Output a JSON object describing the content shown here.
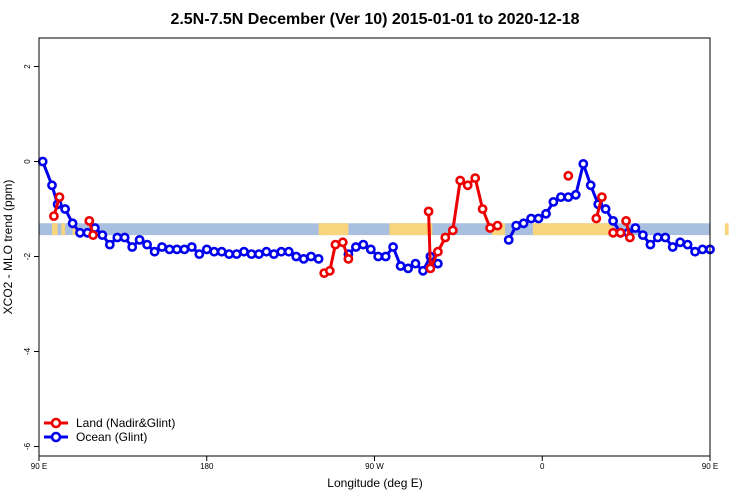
{
  "chart_data": {
    "type": "line",
    "title": "2.5N-7.5N December (Ver 10)   2015-01-01 to 2020-12-18",
    "xlabel": "Longitude (deg E)",
    "ylabel": "XCO2 - MLO trend (ppm)",
    "xlim": [
      90,
      450
    ],
    "ylim": [
      -6.2,
      2.6
    ],
    "x_ticks": [
      {
        "value": 90,
        "label": "90 E"
      },
      {
        "value": 180,
        "label": "180"
      },
      {
        "value": 270,
        "label": "90 W"
      },
      {
        "value": 360,
        "label": "0"
      },
      {
        "value": 450,
        "label": "90 E"
      },
      {
        "value": 540,
        "label": "180"
      }
    ],
    "y_ticks": [
      {
        "value": 2,
        "label": "2"
      },
      {
        "value": 0,
        "label": "0"
      },
      {
        "value": -2,
        "label": "-2"
      },
      {
        "value": -4,
        "label": "-4"
      },
      {
        "value": -6,
        "label": "-6"
      }
    ],
    "legend_position": "bottom-left",
    "surface_band": {
      "y_top": -1.3,
      "y_bottom": -1.55,
      "ocean_color": "#a8bfdf",
      "land_color": "#f8d57c",
      "land_ranges": [
        [
          97,
          100
        ],
        [
          102,
          104
        ],
        [
          108,
          110
        ],
        [
          240,
          256
        ],
        [
          278,
          301
        ],
        [
          333,
          340
        ],
        [
          355,
          398
        ],
        [
          458,
          460
        ],
        [
          480,
          484
        ]
      ]
    },
    "series": [
      {
        "name": "Ocean (Glint)",
        "color": "#0000ee",
        "segments": [
          [
            [
              92,
              0.0
            ],
            [
              97,
              -0.5
            ],
            [
              100,
              -0.9
            ],
            [
              104,
              -1.0
            ],
            [
              108,
              -1.3
            ],
            [
              112,
              -1.5
            ],
            [
              116,
              -1.5
            ],
            [
              120,
              -1.4
            ],
            [
              124,
              -1.55
            ],
            [
              128,
              -1.75
            ],
            [
              132,
              -1.6
            ],
            [
              136,
              -1.6
            ],
            [
              140,
              -1.8
            ],
            [
              144,
              -1.65
            ],
            [
              148,
              -1.75
            ],
            [
              152,
              -1.9
            ],
            [
              156,
              -1.8
            ],
            [
              160,
              -1.85
            ],
            [
              164,
              -1.85
            ],
            [
              168,
              -1.85
            ],
            [
              172,
              -1.8
            ],
            [
              176,
              -1.95
            ],
            [
              180,
              -1.85
            ],
            [
              184,
              -1.9
            ],
            [
              188,
              -1.9
            ],
            [
              192,
              -1.95
            ],
            [
              196,
              -1.95
            ],
            [
              200,
              -1.9
            ],
            [
              204,
              -1.95
            ],
            [
              208,
              -1.95
            ],
            [
              212,
              -1.9
            ],
            [
              216,
              -1.95
            ],
            [
              220,
              -1.9
            ],
            [
              224,
              -1.9
            ],
            [
              228,
              -2.0
            ],
            [
              232,
              -2.05
            ],
            [
              236,
              -2.0
            ],
            [
              240,
              -2.05
            ]
          ],
          [
            [
              256,
              -1.95
            ],
            [
              260,
              -1.8
            ],
            [
              264,
              -1.75
            ],
            [
              268,
              -1.85
            ],
            [
              272,
              -2.0
            ],
            [
              276,
              -2.0
            ],
            [
              280,
              -1.8
            ],
            [
              284,
              -2.2
            ],
            [
              288,
              -2.25
            ],
            [
              292,
              -2.15
            ],
            [
              296,
              -2.3
            ],
            [
              300,
              -2.0
            ],
            [
              304,
              -2.15
            ]
          ],
          [
            [
              342,
              -1.65
            ],
            [
              346,
              -1.35
            ],
            [
              350,
              -1.3
            ],
            [
              354,
              -1.2
            ],
            [
              358,
              -1.2
            ],
            [
              362,
              -1.1
            ],
            [
              366,
              -0.85
            ],
            [
              370,
              -0.75
            ],
            [
              374,
              -0.75
            ],
            [
              378,
              -0.7
            ],
            [
              382,
              -0.05
            ],
            [
              386,
              -0.5
            ],
            [
              390,
              -0.9
            ],
            [
              394,
              -1.0
            ],
            [
              398,
              -1.25
            ],
            [
              402,
              -1.5
            ],
            [
              406,
              -1.5
            ],
            [
              410,
              -1.4
            ],
            [
              414,
              -1.55
            ],
            [
              418,
              -1.75
            ],
            [
              422,
              -1.6
            ],
            [
              426,
              -1.6
            ],
            [
              430,
              -1.8
            ],
            [
              434,
              -1.7
            ],
            [
              438,
              -1.75
            ],
            [
              442,
              -1.9
            ],
            [
              446,
              -1.85
            ],
            [
              450,
              -1.85
            ]
          ]
        ]
      },
      {
        "name": "Land (Nadir&Glint)",
        "color": "#ee0000",
        "segments": [
          [
            [
              98,
              -1.15
            ],
            [
              101,
              -0.75
            ]
          ],
          [
            [
              117,
              -1.25
            ],
            [
              119,
              -1.55
            ]
          ],
          [
            [
              243,
              -2.35
            ],
            [
              246,
              -2.3
            ],
            [
              249,
              -1.75
            ],
            [
              253,
              -1.7
            ],
            [
              256,
              -2.05
            ]
          ],
          [
            [
              299,
              -1.05
            ],
            [
              300,
              -2.25
            ],
            [
              304,
              -1.9
            ],
            [
              308,
              -1.6
            ],
            [
              312,
              -1.45
            ],
            [
              316,
              -0.4
            ],
            [
              320,
              -0.5
            ],
            [
              324,
              -0.35
            ],
            [
              328,
              -1.0
            ],
            [
              332,
              -1.4
            ],
            [
              336,
              -1.35
            ]
          ],
          [
            [
              374,
              -0.3
            ]
          ],
          [
            [
              389,
              -1.2
            ],
            [
              392,
              -0.75
            ]
          ],
          [
            [
              398,
              -1.5
            ],
            [
              402,
              -1.5
            ]
          ],
          [
            [
              405,
              -1.25
            ],
            [
              407,
              -1.6
            ]
          ]
        ]
      }
    ]
  }
}
